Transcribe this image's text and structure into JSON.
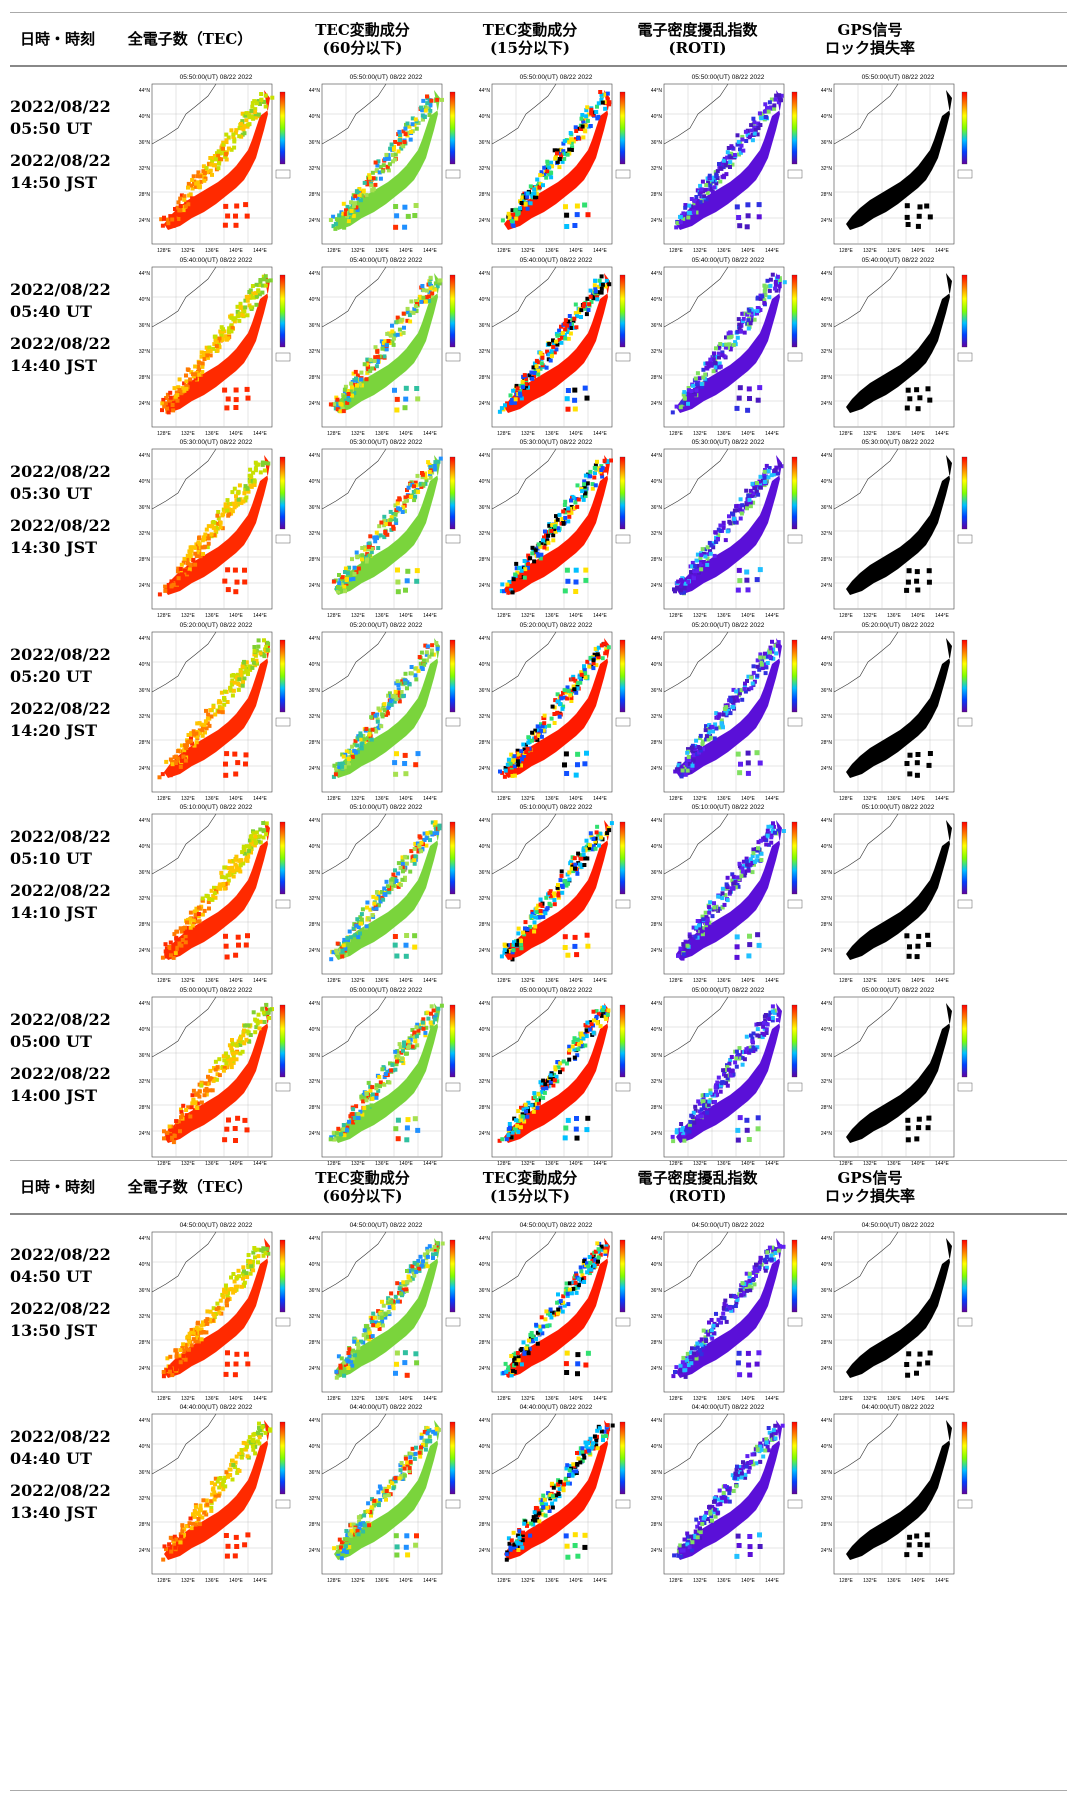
{
  "header": {
    "col_time": "日時・時刻",
    "col_tec": "全電子数（TEC）",
    "col_dtec60": "TEC変動成分\n(60分以下)",
    "col_dtec15": "TEC変動成分\n(15分以下)",
    "col_roti": "電子密度擾乱指数\n(ROTI)",
    "col_lol": "GPS信号\nロック損失率"
  },
  "lat_ticks": [
    "44°N",
    "40°N",
    "36°N",
    "32°N",
    "28°N",
    "24°N"
  ],
  "lon_ticks": [
    "128°E",
    "132°E",
    "136°E",
    "140°E",
    "144°E"
  ],
  "panel_types": [
    "tec",
    "dtec60",
    "dtec15",
    "roti",
    "lol"
  ],
  "colors": {
    "tec": [
      "#ff2a00",
      "#ff7a00",
      "#ffc400",
      "#c8e000",
      "#80d030"
    ],
    "dtec60": [
      "#7ad43c",
      "#a6e050",
      "#30c0a0",
      "#ff3000",
      "#ffe000",
      "#2090ff"
    ],
    "dtec15": [
      "#ff1a00",
      "#000000",
      "#30e070",
      "#1050ff",
      "#ffe000",
      "#00c0ff"
    ],
    "roti": [
      "#5a10d8",
      "#4a18c0",
      "#3030e0",
      "#6020f0",
      "#20c0ff",
      "#80e060"
    ],
    "lol": [
      "#000000"
    ]
  },
  "rows": [
    {
      "ut_date": "2022/08/22",
      "ut_time": "05:50 UT",
      "jst_date": "2022/08/22",
      "jst_time": "14:50 JST",
      "map_title": "05:50:00(UT) 08/22 2022"
    },
    {
      "ut_date": "2022/08/22",
      "ut_time": "05:40 UT",
      "jst_date": "2022/08/22",
      "jst_time": "14:40 JST",
      "map_title": "05:40:00(UT) 08/22 2022"
    },
    {
      "ut_date": "2022/08/22",
      "ut_time": "05:30 UT",
      "jst_date": "2022/08/22",
      "jst_time": "14:30 JST",
      "map_title": "05:30:00(UT) 08/22 2022"
    },
    {
      "ut_date": "2022/08/22",
      "ut_time": "05:20 UT",
      "jst_date": "2022/08/22",
      "jst_time": "14:20 JST",
      "map_title": "05:20:00(UT) 08/22 2022"
    },
    {
      "ut_date": "2022/08/22",
      "ut_time": "05:10 UT",
      "jst_date": "2022/08/22",
      "jst_time": "14:10 JST",
      "map_title": "05:10:00(UT) 08/22 2022"
    },
    {
      "ut_date": "2022/08/22",
      "ut_time": "05:00 UT",
      "jst_date": "2022/08/22",
      "jst_time": "14:00 JST",
      "map_title": "05:00:00(UT) 08/22 2022"
    },
    {
      "ut_date": "2022/08/22",
      "ut_time": "04:50 UT",
      "jst_date": "2022/08/22",
      "jst_time": "13:50 JST",
      "map_title": "04:50:00(UT) 08/22 2022"
    },
    {
      "ut_date": "2022/08/22",
      "ut_time": "04:40 UT",
      "jst_date": "2022/08/22",
      "jst_time": "13:40 JST",
      "map_title": "04:40:00(UT) 08/22 2022"
    }
  ]
}
